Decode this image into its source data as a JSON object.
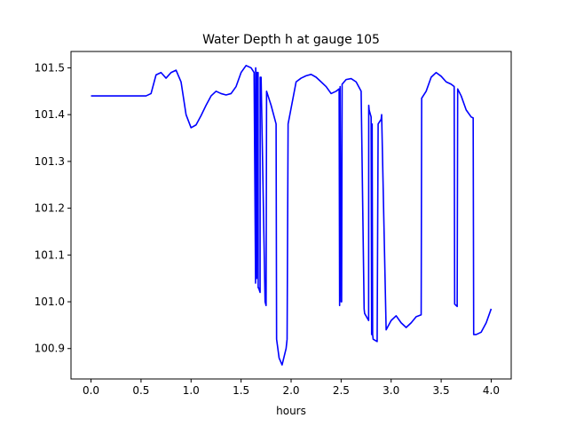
{
  "chart_data": {
    "type": "line",
    "title": "Water Depth h at gauge 105",
    "xlabel": "hours",
    "ylabel": "",
    "xlim": [
      -0.2,
      4.2
    ],
    "ylim": [
      100.835,
      101.535
    ],
    "xticks": [
      0.0,
      0.5,
      1.0,
      1.5,
      2.0,
      2.5,
      3.0,
      3.5,
      4.0
    ],
    "xtick_labels": [
      "0.0",
      "0.5",
      "1.0",
      "1.5",
      "2.0",
      "2.5",
      "3.0",
      "3.5",
      "4.0"
    ],
    "yticks": [
      100.9,
      101.0,
      101.1,
      101.2,
      101.3,
      101.4,
      101.5
    ],
    "ytick_labels": [
      "100.9",
      "101.0",
      "101.1",
      "101.2",
      "101.3",
      "101.4",
      "101.5"
    ],
    "grid": false,
    "series": [
      {
        "color": "#0000ff",
        "x": [
          0.0,
          0.3,
          0.55,
          0.6,
          0.65,
          0.7,
          0.75,
          0.8,
          0.85,
          0.9,
          0.95,
          1.0,
          1.05,
          1.1,
          1.15,
          1.2,
          1.25,
          1.3,
          1.35,
          1.4,
          1.45,
          1.5,
          1.55,
          1.6,
          1.63,
          1.645,
          1.646,
          1.648,
          1.655,
          1.656,
          1.66,
          1.67,
          1.671,
          1.675,
          1.69,
          1.691,
          1.7,
          1.74,
          1.75,
          1.755,
          1.8,
          1.85,
          1.855,
          1.88,
          1.91,
          1.95,
          1.96,
          1.97,
          2.05,
          2.1,
          2.15,
          2.2,
          2.25,
          2.3,
          2.35,
          2.4,
          2.45,
          2.48,
          2.485,
          2.49,
          2.5,
          2.505,
          2.51,
          2.55,
          2.6,
          2.65,
          2.7,
          2.73,
          2.735,
          2.775,
          2.776,
          2.78,
          2.8,
          2.805,
          2.81,
          2.815,
          2.82,
          2.86,
          2.87,
          2.9,
          2.905,
          2.95,
          3.0,
          3.05,
          3.1,
          3.15,
          3.2,
          3.25,
          3.3,
          3.305,
          3.35,
          3.4,
          3.45,
          3.5,
          3.55,
          3.6,
          3.63,
          3.635,
          3.66,
          3.665,
          3.7,
          3.75,
          3.8,
          3.82,
          3.825,
          3.85,
          3.9,
          3.95,
          4.0
        ],
        "y": [
          101.44,
          101.44,
          101.44,
          101.445,
          101.485,
          101.49,
          101.478,
          101.49,
          101.495,
          101.47,
          101.4,
          101.372,
          101.378,
          101.398,
          101.42,
          101.44,
          101.45,
          101.445,
          101.442,
          101.445,
          101.46,
          101.49,
          101.505,
          101.5,
          101.49,
          101.04,
          101.5,
          101.49,
          101.49,
          101.05,
          101.49,
          101.49,
          101.03,
          101.03,
          101.02,
          101.48,
          101.48,
          101.0,
          100.992,
          101.45,
          101.42,
          101.38,
          100.92,
          100.88,
          100.865,
          100.9,
          100.92,
          101.38,
          101.47,
          101.478,
          101.483,
          101.486,
          101.48,
          101.47,
          101.46,
          101.445,
          101.45,
          101.455,
          100.992,
          101.46,
          101.0,
          101.0,
          101.465,
          101.475,
          101.477,
          101.47,
          101.45,
          100.985,
          100.975,
          100.96,
          101.42,
          101.41,
          101.395,
          100.93,
          101.38,
          100.93,
          100.92,
          100.915,
          101.38,
          101.39,
          101.4,
          100.94,
          100.96,
          100.97,
          100.955,
          100.945,
          100.955,
          100.968,
          100.972,
          101.435,
          101.45,
          101.48,
          101.49,
          101.482,
          101.47,
          101.465,
          101.46,
          100.995,
          100.99,
          101.455,
          101.44,
          101.41,
          101.395,
          101.393,
          100.93,
          100.93,
          100.935,
          100.955,
          100.985
        ]
      }
    ]
  }
}
